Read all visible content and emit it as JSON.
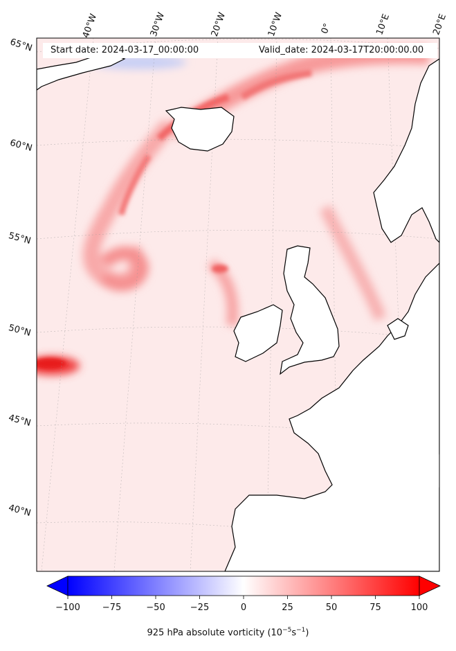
{
  "header": {
    "start_date": "Start date: 2024-03-17_00:00:00",
    "valid_date": "Valid_date: 2024-03-17T20:00:00.00"
  },
  "map": {
    "lon_labels": [
      "40°W",
      "30°W",
      "20°W",
      "10°W",
      "0°",
      "10°E",
      "20°E"
    ],
    "lat_labels": [
      "65°N",
      "60°N",
      "55°N",
      "50°N",
      "45°N",
      "40°N"
    ],
    "gridlines": true,
    "colors": {
      "coast": "#000000",
      "ocean_bg": "#fdeaea",
      "land_bg": "#ffffff"
    }
  },
  "colorbar": {
    "min": -100,
    "max": 100,
    "ticks": [
      "−100",
      "−75",
      "−50",
      "−25",
      "0",
      "25",
      "50",
      "75",
      "100"
    ],
    "label": "925 hPa absolute vorticity (10",
    "label_exp1": "−5",
    "label_mid": "s",
    "label_exp2": "−1",
    "label_end": ")",
    "colors": {
      "low": "#0000ff",
      "mid": "#ffffff",
      "high": "#ff0000"
    },
    "extend": "both"
  }
}
